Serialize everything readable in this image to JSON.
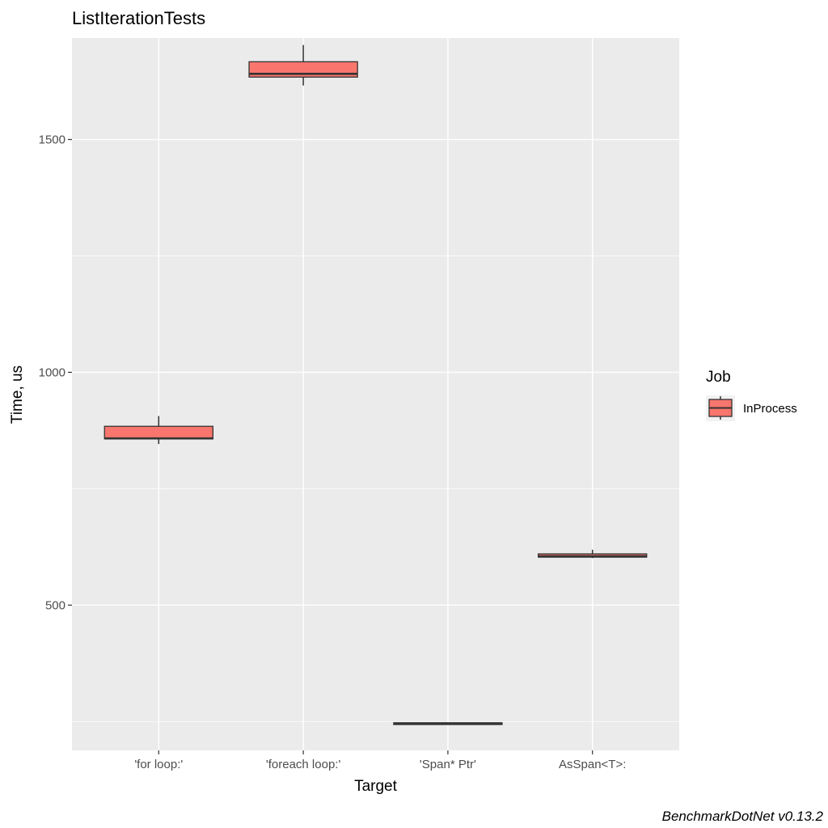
{
  "chart_data": {
    "type": "box",
    "title": "ListIterationTests",
    "xlabel": "Target",
    "ylabel": "Time, us",
    "caption": "BenchmarkDotNet v0.13.2",
    "categories": [
      "'for loop:'",
      "'foreach loop:'",
      "'Span* Ptr'",
      "AsSpan<T>:"
    ],
    "ylim": [
      188,
      1718
    ],
    "y_major_ticks": [
      500,
      1000,
      1500
    ],
    "y_minor_ticks": [
      250,
      750,
      1250,
      1750
    ],
    "grid": true,
    "background": "#ebebeb",
    "legend": {
      "title": "Job",
      "position": "right",
      "entries": [
        "InProcess"
      ]
    },
    "series": [
      {
        "name": "InProcess",
        "color": "#f8766d",
        "boxes": [
          {
            "category": "'for loop:'",
            "min": 846,
            "q1": 857,
            "median": 858,
            "q3": 884,
            "max": 906
          },
          {
            "category": "'foreach loop:'",
            "min": 1616,
            "q1": 1634,
            "median": 1641,
            "q3": 1667,
            "max": 1703
          },
          {
            "category": "'Span* Ptr'",
            "min": 246,
            "q1": 246,
            "median": 246,
            "q3": 247,
            "max": 248
          },
          {
            "category": "AsSpan<T>:",
            "min": 601,
            "q1": 603,
            "median": 605,
            "q3": 610,
            "max": 619
          }
        ]
      }
    ]
  }
}
